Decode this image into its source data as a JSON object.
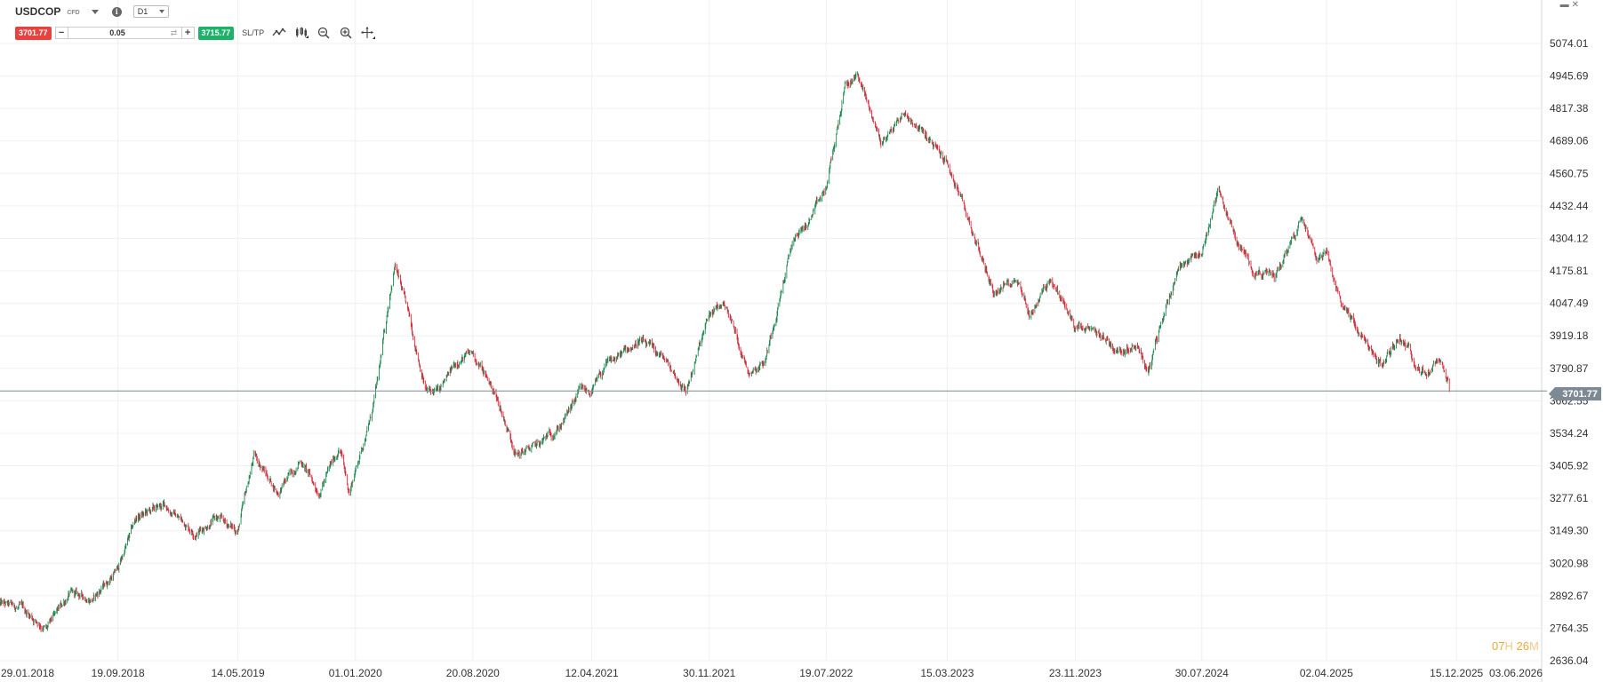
{
  "header": {
    "symbol": "USDCOP",
    "symbol_type": "CFD",
    "timeframe": "D1"
  },
  "trade": {
    "sell_price": "3701.77",
    "quantity": "0.05",
    "buy_price": "3715.77",
    "sltp_label": "SL/TP"
  },
  "icons": {
    "chart_type": "line-chart-icon",
    "indicators": "indicators-icon",
    "zoom_out": "zoom-out-icon",
    "zoom_in": "zoom-in-icon",
    "crosshair": "crosshair-icon",
    "info": "info-icon",
    "window_restore": "window-restore-icon",
    "window_close": "close-icon"
  },
  "current_price": "3701.77",
  "countdown": {
    "hours": "07",
    "h_unit": "H",
    "minutes": "26",
    "m_unit": "M"
  },
  "colors": {
    "bull": "#1e8a52",
    "bear": "#d62c3c",
    "sell": "#e8423e",
    "buy": "#1eb16a",
    "grid": "#f0f0f0",
    "price_line": "#7d8a93",
    "countdown": "#f0a637"
  },
  "chart_data": {
    "type": "line",
    "series": [
      {
        "x": [
          "2018-01-29",
          "2018-03-15",
          "2018-05-01",
          "2018-06-15",
          "2018-08-01",
          "2018-09-19",
          "2018-10-25",
          "2018-12-20",
          "2019-02-20",
          "2019-04-01",
          "2019-05-14",
          "2019-06-15",
          "2019-08-01",
          "2019-09-15",
          "2019-10-20",
          "2019-12-01",
          "2019-12-20",
          "2020-01-01",
          "2020-02-01",
          "2020-02-15",
          "2020-03-10",
          "2020-03-19",
          "2020-04-15",
          "2020-05-20",
          "2020-06-15",
          "2020-07-20",
          "2020-08-20",
          "2020-10-01",
          "2020-11-15",
          "2020-12-30",
          "2021-02-15",
          "2021-03-20",
          "2021-04-12",
          "2021-05-10",
          "2021-07-15",
          "2021-09-01",
          "2021-10-15",
          "2021-11-30",
          "2021-12-31",
          "2022-02-15",
          "2022-03-20",
          "2022-05-15",
          "2022-06-15",
          "2022-07-19",
          "2022-08-25",
          "2022-09-20",
          "2022-10-15",
          "2022-11-05",
          "2022-12-20",
          "2023-01-15",
          "2023-03-15",
          "2023-05-01",
          "2023-06-15",
          "2023-08-01",
          "2023-08-25",
          "2023-10-05",
          "2023-11-23",
          "2024-01-15",
          "2024-02-15",
          "2024-03-25",
          "2024-04-15",
          "2024-05-15",
          "2024-06-15",
          "2024-07-30",
          "2024-09-01",
          "2024-10-05",
          "2024-11-10",
          "2024-12-20",
          "2025-02-15",
          "2025-03-15",
          "2025-04-02",
          "2025-04-20",
          "2025-06-15",
          "2025-07-20",
          "2025-08-25",
          "2025-10-15",
          "2025-11-10",
          "2025-12-01"
        ],
        "y": [
          2860,
          2840,
          2760,
          2900,
          2880,
          3000,
          3200,
          3250,
          3140,
          3200,
          3150,
          3450,
          3300,
          3430,
          3300,
          3480,
          3300,
          3390,
          3600,
          3750,
          4100,
          4200,
          4000,
          3700,
          3700,
          3820,
          3850,
          3700,
          3450,
          3490,
          3580,
          3700,
          3700,
          3800,
          3900,
          3830,
          3700,
          4000,
          4050,
          3780,
          3820,
          4300,
          4370,
          4500,
          4900,
          4950,
          4800,
          4680,
          4800,
          4750,
          4600,
          4350,
          4090,
          4150,
          4000,
          4150,
          3950,
          3920,
          3860,
          3890,
          3770,
          4000,
          4200,
          4250,
          4500,
          4300,
          4180,
          4150,
          4400,
          4230,
          4250,
          4100,
          3900,
          3800,
          3920,
          3760,
          3820,
          3701.77
        ]
      }
    ],
    "y_axis_ticks": [
      "5074.01",
      "4945.69",
      "4817.38",
      "4689.06",
      "4560.75",
      "4432.44",
      "4304.12",
      "4175.81",
      "4047.49",
      "3919.18",
      "3790.87",
      "3662.55",
      "3534.24",
      "3405.92",
      "3277.61",
      "3149.30",
      "3020.98",
      "2892.67",
      "2764.35",
      "2636.04"
    ],
    "x_axis_ticks": [
      "29.01.2018",
      "19.09.2018",
      "14.05.2019",
      "01.01.2020",
      "20.08.2020",
      "12.04.2021",
      "30.11.2021",
      "19.07.2022",
      "15.03.2023",
      "23.11.2023",
      "30.07.2024",
      "02.04.2025",
      "15.12.2025",
      "03.06.2026"
    ],
    "ylim": [
      2636.04,
      5074.01
    ],
    "xlim": [
      "2018-01-29",
      "2026-06-03"
    ],
    "grid": true
  }
}
